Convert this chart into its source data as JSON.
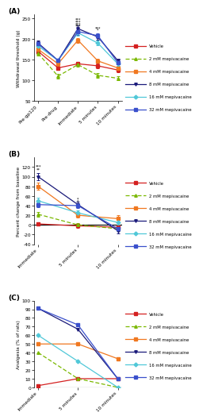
{
  "panel_A": {
    "x_labels": [
      "Pre-gp120",
      "Pre-drug",
      "Immediate",
      "5 minutes",
      "10 minutes"
    ],
    "series": [
      {
        "label": "Vehicle",
        "color": "#d42020",
        "linestyle": "-",
        "marker": "s",
        "dashes": [],
        "y": [
          170,
          130,
          140,
          135,
          125
        ],
        "yerr": [
          5,
          5,
          5,
          5,
          5
        ]
      },
      {
        "label": "2 mM mepivacaine",
        "color": "#7ab800",
        "linestyle": "--",
        "marker": "^",
        "dashes": [
          4,
          2
        ],
        "y": [
          165,
          110,
          138,
          112,
          105
        ],
        "yerr": [
          5,
          5,
          5,
          5,
          5
        ]
      },
      {
        "label": "4 mM mepivacaine",
        "color": "#f07820",
        "linestyle": "-",
        "marker": "s",
        "dashes": [],
        "y": [
          175,
          140,
          197,
          147,
          130
        ],
        "yerr": [
          5,
          5,
          6,
          5,
          5
        ]
      },
      {
        "label": "8 mM mepivacaine",
        "color": "#1a1a7a",
        "linestyle": "-",
        "marker": "v",
        "dashes": [],
        "y": [
          190,
          148,
          225,
          205,
          148
        ],
        "yerr": [
          6,
          5,
          8,
          7,
          5
        ]
      },
      {
        "label": "16 mM mepivacaine",
        "color": "#50c8d8",
        "linestyle": "-",
        "marker": "D",
        "dashes": [],
        "y": [
          183,
          148,
          215,
          190,
          140
        ],
        "yerr": [
          5,
          5,
          7,
          6,
          5
        ]
      },
      {
        "label": "32 mM mepivacaine",
        "color": "#3a50cc",
        "linestyle": "-",
        "marker": "s",
        "dashes": [],
        "y": [
          188,
          148,
          218,
          208,
          143
        ],
        "yerr": [
          5,
          5,
          8,
          6,
          5
        ]
      }
    ],
    "ylabel": "Withdrawal threshold (g)",
    "ylim": [
      50,
      260
    ],
    "yticks": [
      50,
      100,
      150,
      200,
      250
    ]
  },
  "panel_B": {
    "x_labels": [
      "Immediate",
      "5 minutes",
      "10 minutes"
    ],
    "series": [
      {
        "label": "Vehicle",
        "color": "#d42020",
        "linestyle": "-",
        "marker": "s",
        "dashes": [],
        "y": [
          2,
          -2,
          -5
        ],
        "yerr": [
          4,
          4,
          4
        ]
      },
      {
        "label": "2 mM mepivacaine",
        "color": "#7ab800",
        "linestyle": "--",
        "marker": "^",
        "dashes": [
          4,
          2
        ],
        "y": [
          22,
          0,
          -8
        ],
        "yerr": [
          5,
          4,
          4
        ]
      },
      {
        "label": "4 mM mepivacaine",
        "color": "#f07820",
        "linestyle": "-",
        "marker": "s",
        "dashes": [],
        "y": [
          80,
          20,
          13
        ],
        "yerr": [
          7,
          5,
          7
        ]
      },
      {
        "label": "8 mM mepivacaine",
        "color": "#1a1a7a",
        "linestyle": "-",
        "marker": "v",
        "dashes": [],
        "y": [
          100,
          42,
          -12
        ],
        "yerr": [
          8,
          6,
          5
        ]
      },
      {
        "label": "16 mM mepivacaine",
        "color": "#50c8d8",
        "linestyle": "-",
        "marker": "D",
        "dashes": [],
        "y": [
          50,
          25,
          5
        ],
        "yerr": [
          6,
          5,
          5
        ]
      },
      {
        "label": "32 mM mepivacaine",
        "color": "#3a50cc",
        "linestyle": "-",
        "marker": "s",
        "dashes": [],
        "y": [
          42,
          40,
          -8
        ],
        "yerr": [
          5,
          5,
          5
        ]
      }
    ],
    "ylabel": "Percent change from baseline",
    "ylim": [
      -40,
      140
    ],
    "yticks": [
      -40,
      -20,
      0,
      20,
      40,
      60,
      80,
      100,
      120
    ]
  },
  "panel_C": {
    "x_labels": [
      "Immediate",
      "5 minutes",
      "10 minutes"
    ],
    "series": [
      {
        "label": "Vehicle",
        "color": "#d42020",
        "linestyle": "-",
        "marker": "s",
        "dashes": [],
        "y": [
          2,
          10,
          10
        ]
      },
      {
        "label": "2 mM mepivacaine",
        "color": "#7ab800",
        "linestyle": "--",
        "marker": "^",
        "dashes": [
          4,
          2
        ],
        "y": [
          40,
          10,
          0
        ]
      },
      {
        "label": "4 mM mepivacaine",
        "color": "#f07820",
        "linestyle": "-",
        "marker": "s",
        "dashes": [],
        "y": [
          50,
          50,
          33
        ]
      },
      {
        "label": "8 mM mepivacaine",
        "color": "#1a1a7a",
        "linestyle": "-",
        "marker": "v",
        "dashes": [],
        "y": [
          91,
          67,
          10
        ]
      },
      {
        "label": "16 mM mepivacaine",
        "color": "#50c8d8",
        "linestyle": "-",
        "marker": "D",
        "dashes": [],
        "y": [
          60,
          30,
          0
        ]
      },
      {
        "label": "32 mM mepivacaine",
        "color": "#3a50cc",
        "linestyle": "-",
        "marker": "s",
        "dashes": [],
        "y": [
          91,
          72,
          10
        ]
      }
    ],
    "ylabel": "Analgesia (% of rats)",
    "ylim": [
      0,
      100
    ],
    "yticks": [
      0,
      10,
      20,
      30,
      40,
      50,
      60,
      70,
      80,
      90,
      100
    ]
  }
}
